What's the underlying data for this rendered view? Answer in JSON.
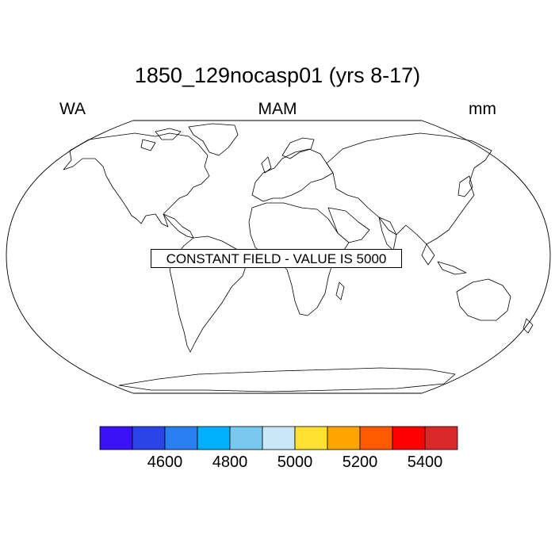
{
  "title": "1850_129nocasp01 (yrs 8-17)",
  "left_label": "WA",
  "center_label": "MAM",
  "right_label": "mm",
  "annotation": "CONSTANT FIELD - VALUE IS 5000",
  "colorbar": {
    "colors": [
      "#3a12f5",
      "#2a44e8",
      "#2a7ff0",
      "#00b0ff",
      "#78c8f0",
      "#c8e8f8",
      "#ffe033",
      "#ffa500",
      "#ff5a00",
      "#ff0000",
      "#d82828"
    ],
    "tick_labels": [
      "4600",
      "4800",
      "5000",
      "5200",
      "5400"
    ]
  }
}
